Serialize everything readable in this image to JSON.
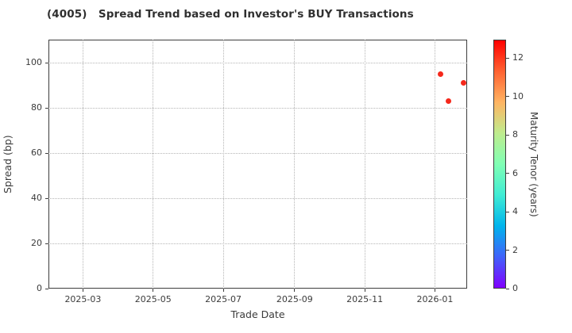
{
  "chart_data": {
    "type": "scatter",
    "title": "(4005)   Spread Trend based on Investor's BUY Transactions",
    "xlabel": "Trade Date",
    "ylabel": "Spread (bp)",
    "x_ticks": [
      {
        "label": "2025-03",
        "date": "2025-03-01"
      },
      {
        "label": "2025-05",
        "date": "2025-05-01"
      },
      {
        "label": "2025-07",
        "date": "2025-07-01"
      },
      {
        "label": "2025-09",
        "date": "2025-09-01"
      },
      {
        "label": "2025-11",
        "date": "2025-11-01"
      },
      {
        "label": "2026-01",
        "date": "2026-01-01"
      }
    ],
    "xlim": [
      "2025-01-30",
      "2026-01-29"
    ],
    "y_ticks": [
      0,
      20,
      40,
      60,
      80,
      100
    ],
    "ylim": [
      0,
      110.2
    ],
    "grid": "dotted",
    "points": [
      {
        "date": "2026-01-06",
        "spread_bp": 95,
        "maturity_tenor_years_est": 12.4,
        "color": "#f5281b"
      },
      {
        "date": "2026-01-13",
        "spread_bp": 83,
        "maturity_tenor_years_est": 12.4,
        "color": "#f5281b"
      },
      {
        "date": "2026-01-26",
        "spread_bp": 91,
        "maturity_tenor_years_est": 12.4,
        "color": "#f5281b"
      }
    ],
    "colorbar": {
      "label": "Maturity Tenor (years)",
      "ticks": [
        0,
        2,
        4,
        6,
        8,
        10,
        12
      ],
      "vmin": 0,
      "vmax": 12.95,
      "colormap": "rainbow",
      "gradient_stops": [
        "#8000ff",
        "#4062fa",
        "#00b4ec",
        "#40ecd4",
        "#80ffb4",
        "#bfec8e",
        "#ffb462",
        "#ff6231",
        "#ff0000"
      ]
    },
    "colors": {
      "text": "#3b3b3b",
      "spine": "#3d3d3d",
      "grid": "#b5b5b5",
      "background": "#ffffff"
    }
  }
}
